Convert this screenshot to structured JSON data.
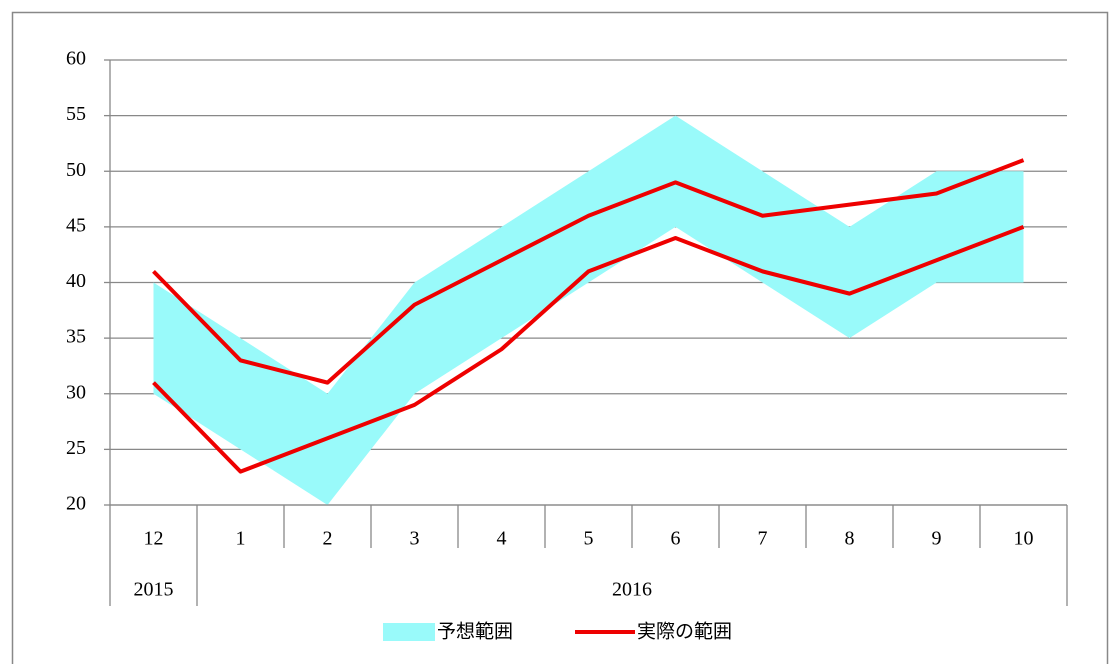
{
  "chart_data": {
    "type": "line",
    "categories": [
      "12",
      "1",
      "2",
      "3",
      "4",
      "5",
      "6",
      "7",
      "8",
      "9",
      "10"
    ],
    "groups": [
      {
        "label": "2015",
        "count": 1
      },
      {
        "label": "2016",
        "count": 10
      }
    ],
    "series": [
      {
        "name": "予想範囲",
        "color": "#99fafa",
        "kind": "band",
        "lower": [
          30,
          25,
          20,
          30,
          35,
          40,
          45,
          40,
          35,
          40,
          40
        ],
        "upper": [
          40,
          35,
          30,
          40,
          45,
          50,
          55,
          50,
          45,
          50,
          50
        ]
      },
      {
        "name": "実際の範囲",
        "color": "#ee0000",
        "kind": "lines",
        "lower": [
          31,
          23,
          26,
          29,
          34,
          41,
          44,
          41,
          39,
          42,
          45
        ],
        "upper": [
          41,
          33,
          31,
          38,
          42,
          46,
          49,
          46,
          47,
          48,
          51
        ]
      }
    ],
    "ylim": [
      20,
      60
    ],
    "yticks": [
      20,
      25,
      30,
      35,
      40,
      45,
      50,
      55,
      60
    ],
    "grid": true,
    "legend": "bottom"
  }
}
